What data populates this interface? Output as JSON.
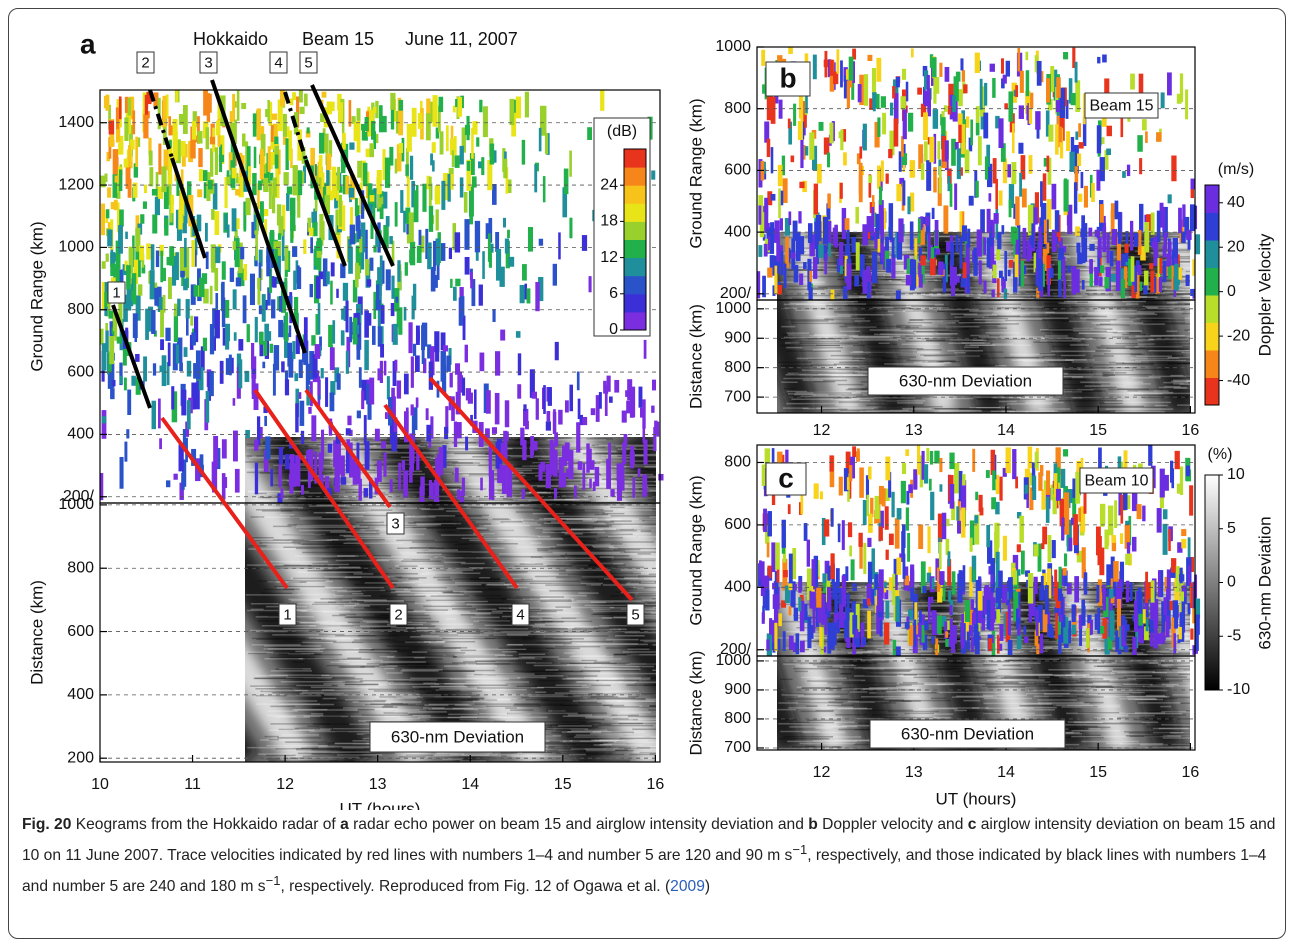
{
  "figure": {
    "a": {
      "label": "a",
      "title": [
        "Hokkaido",
        "Beam 15",
        "June 11, 2007"
      ],
      "xlim": [
        10,
        16.05
      ],
      "xticks": [
        10,
        11,
        12,
        13,
        14,
        15,
        16
      ],
      "xlabel": "UT (hours)",
      "upper": {
        "ylabel": "Ground Range (km)",
        "ylim": [
          180,
          1505
        ],
        "yticks": [
          {
            "value": 200,
            "label": "200/"
          },
          400,
          600,
          800,
          1000,
          1200,
          1400
        ]
      },
      "lower": {
        "ylabel": "Distance (km)",
        "ylim": [
          188,
          1006
        ],
        "yticks": [
          200,
          400,
          600,
          800,
          1000
        ],
        "annotation": "630-nm Deviation"
      },
      "colorbar": {
        "title": "(dB)",
        "lim": [
          0,
          30
        ],
        "ticks": [
          0,
          6,
          12,
          18,
          24
        ],
        "colors": [
          "#7b2ee0",
          "#3b2fd8",
          "#2a52c9",
          "#1f8f9c",
          "#22b04a",
          "#9ad02c",
          "#e9e418",
          "#f7c31a",
          "#f6861a",
          "#e8341c"
        ]
      },
      "black_traces": [
        "1",
        "2",
        "3",
        "4",
        "5"
      ],
      "red_traces": [
        "1",
        "2",
        "3",
        "4",
        "5"
      ]
    },
    "b": {
      "label": "b",
      "beam": "Beam 15",
      "xlim": [
        11.3,
        16.05
      ],
      "xticks": [
        12,
        13,
        14,
        15,
        16
      ],
      "upper": {
        "ylabel": "Ground Range (km)",
        "ylim": [
          180,
          1000
        ],
        "yticks": [
          {
            "value": 200,
            "label": "200/"
          },
          400,
          600,
          800,
          1000
        ]
      },
      "lower": {
        "ylabel": "Distance (km)",
        "ylim": [
          646,
          1030
        ],
        "yticks": [
          700,
          800,
          900,
          1000
        ],
        "annotation": "630-nm Deviation"
      },
      "colorbar": {
        "title": "(m/s)",
        "label": "Doppler Velocity",
        "lim": [
          -51,
          48
        ],
        "ticks": [
          -40,
          -20,
          0,
          20,
          40
        ],
        "colors": [
          "#e8341c",
          "#f6861a",
          "#f7d31a",
          "#b8de2a",
          "#22b04a",
          "#1f8f9c",
          "#2f3fd6",
          "#6a2ee0"
        ]
      }
    },
    "c": {
      "label": "c",
      "beam": "Beam 10",
      "xlim": [
        11.3,
        16.05
      ],
      "xticks": [
        12,
        13,
        14,
        15,
        16
      ],
      "xlabel": "UT (hours)",
      "upper": {
        "ylabel": "Ground Range (km)",
        "ylim": [
          180,
          856
        ],
        "yticks": [
          {
            "value": 200,
            "label": "200/"
          },
          400,
          600,
          800
        ]
      },
      "lower": {
        "ylabel": "Distance (km)",
        "ylim": [
          693,
          1017
        ],
        "yticks": [
          700,
          800,
          900,
          1000
        ],
        "annotation": "630-nm Deviation"
      },
      "colorbar": {
        "title": "(%)",
        "label": "630-nm Deviation",
        "lim": [
          -10,
          10
        ],
        "ticks": [
          -10,
          -5,
          0,
          5,
          10
        ],
        "colors": [
          "#000000",
          "#ffffff"
        ]
      }
    }
  },
  "caption": [
    "Fig. 20",
    " Keograms from the Hokkaido radar of ",
    "a",
    " radar echo power on beam 15 and airglow intensity deviation and ",
    "b",
    " Doppler velocity and ",
    "c",
    " airglow intensity deviation on beam 15 and 10 on 11 June 2007. Trace velocities indicated by red lines with numbers 1–4 and number 5 are 120 and 90 m s",
    "−1",
    ", respectively, and those indicated by black lines with numbers 1–4 and number 5 are 240 and 180 m s",
    "−1",
    ", respectively. Reproduced from Fig. 12 of Ogawa et al. (",
    "2009",
    ")"
  ]
}
